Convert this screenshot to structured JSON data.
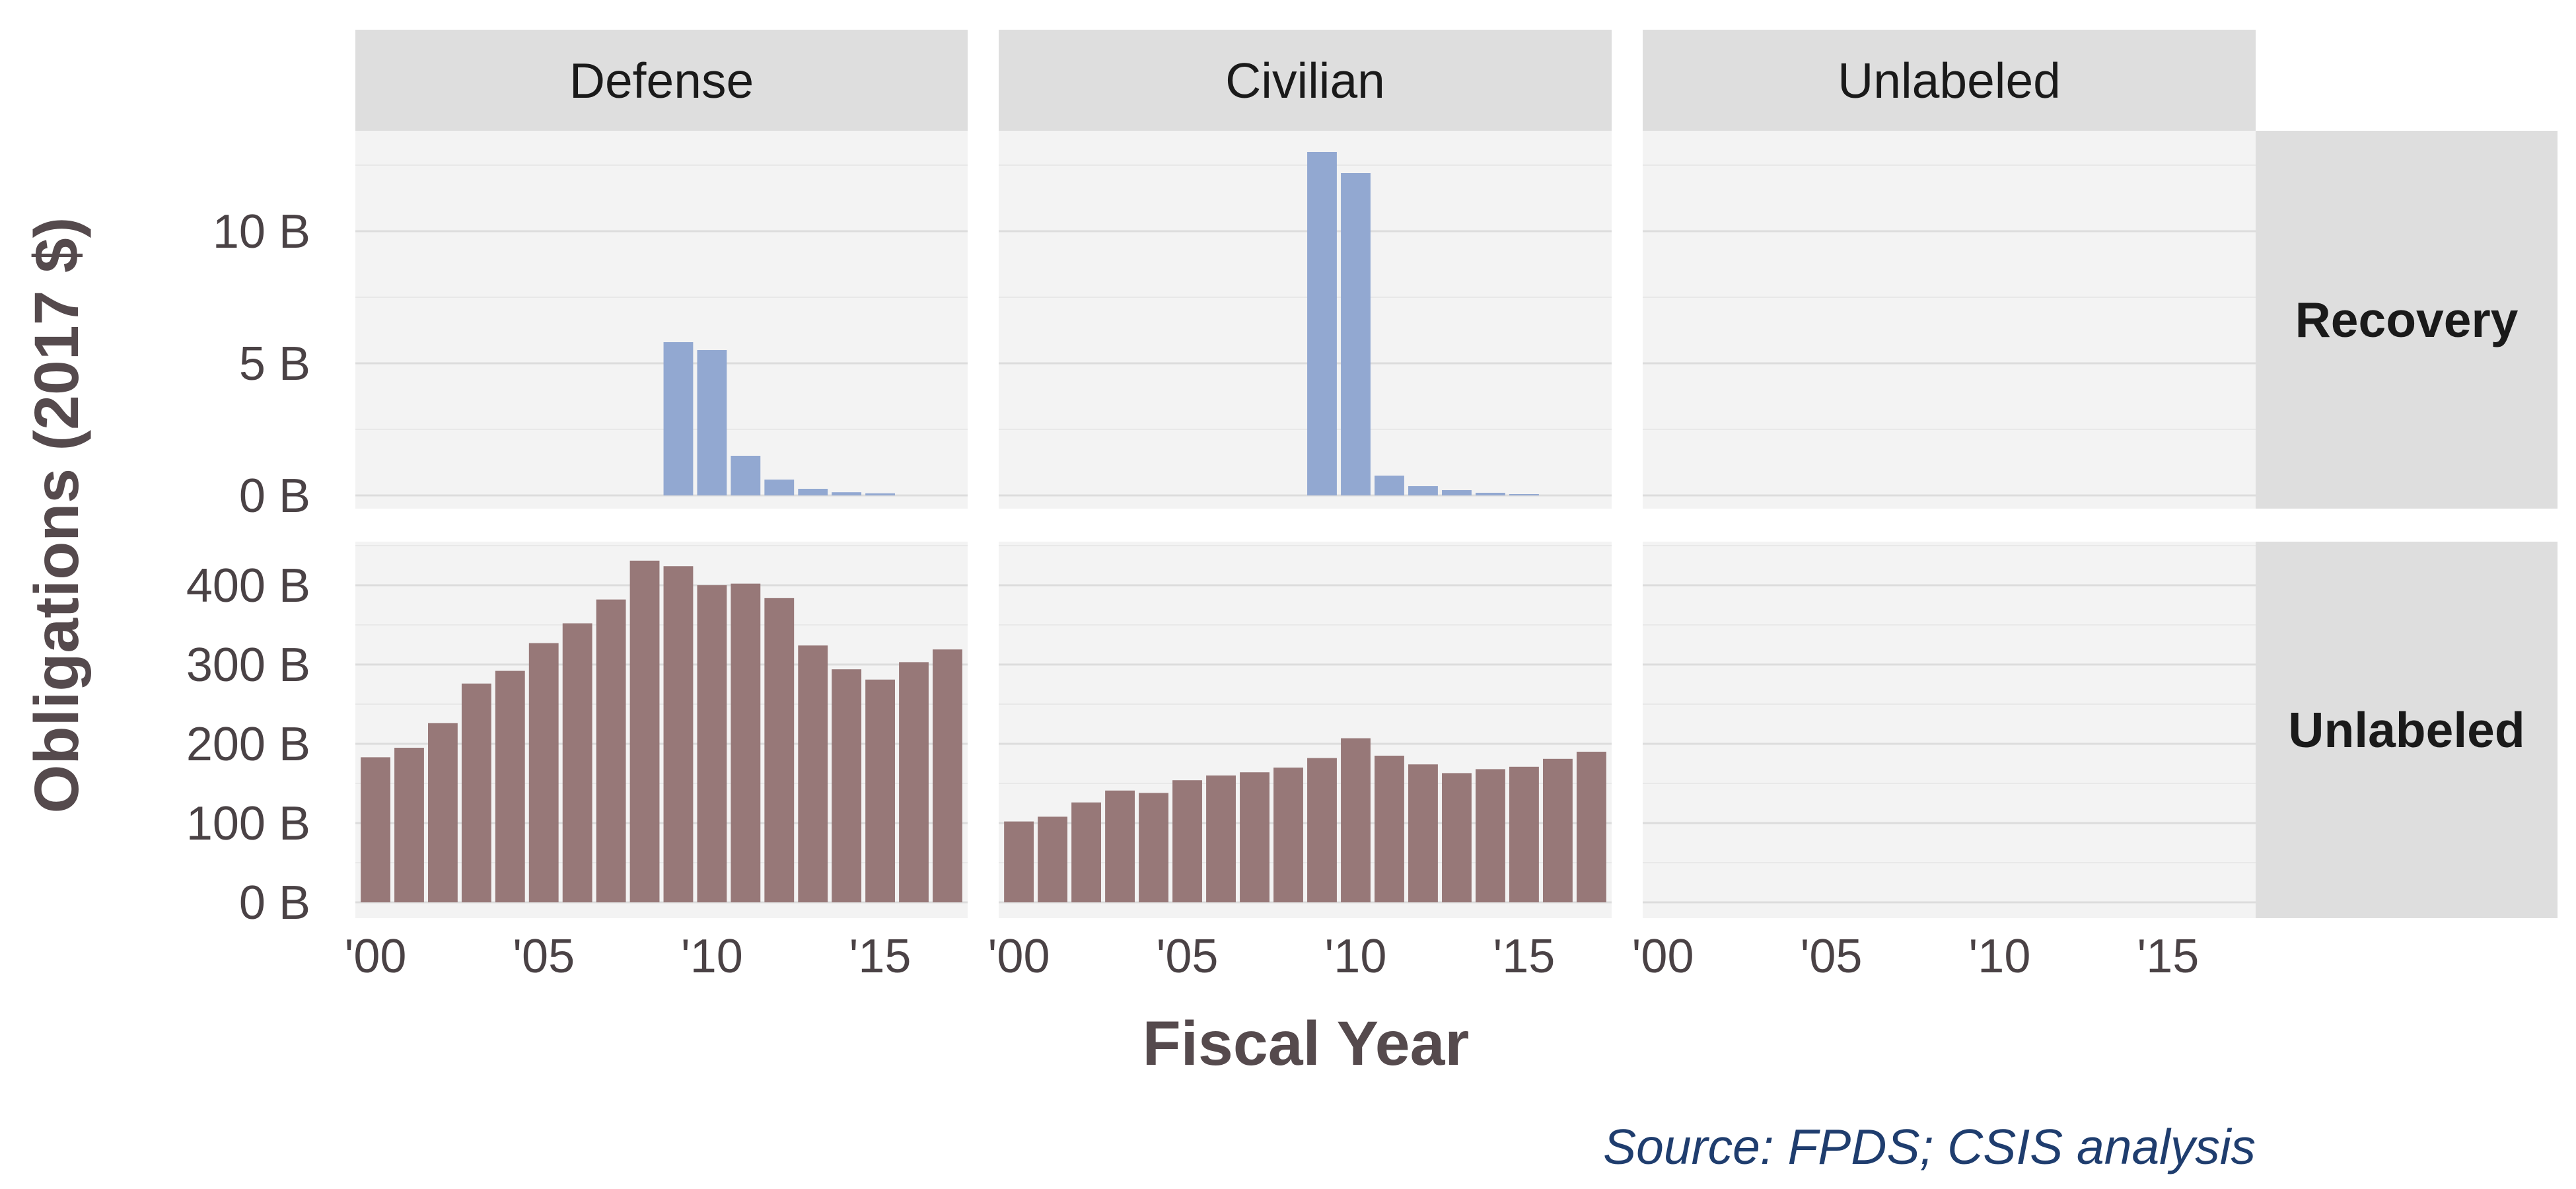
{
  "chart_data": {
    "type": "bar",
    "facet_columns": [
      "Defense",
      "Civilian",
      "Unlabeled"
    ],
    "facet_rows": [
      "Recovery",
      "Unlabeled"
    ],
    "xlabel": "Fiscal Year",
    "ylabel": "Obligations (2017 $)",
    "source": "Source: FPDS; CSIS analysis",
    "x_ticks": [
      "'00",
      "'05",
      "'10",
      "'15"
    ],
    "x": [
      2000,
      2001,
      2002,
      2003,
      2004,
      2005,
      2006,
      2007,
      2008,
      2009,
      2010,
      2011,
      2012,
      2013,
      2014,
      2015,
      2016,
      2017
    ],
    "rows": [
      {
        "name": "Recovery",
        "color": "#92a8d1",
        "ylim": [
          -0.5,
          13.8
        ],
        "y_ticks": [
          0,
          5,
          10
        ],
        "y_tick_labels": [
          "0 B",
          "5 B",
          "10 B"
        ],
        "panels": [
          {
            "column": "Defense",
            "values": [
              0,
              0,
              0,
              0,
              0,
              0,
              0,
              0,
              0,
              5.8,
              5.5,
              1.5,
              0.6,
              0.25,
              0.12,
              0.08,
              0,
              0
            ]
          },
          {
            "column": "Civilian",
            "values": [
              0,
              0,
              0,
              0,
              0,
              0,
              0,
              0,
              0,
              13.0,
              12.2,
              0.75,
              0.35,
              0.2,
              0.1,
              0.05,
              0,
              0
            ]
          },
          {
            "column": "Unlabeled",
            "values": []
          }
        ]
      },
      {
        "name": "Unlabeled",
        "color": "#977878",
        "ylim": [
          -20,
          455
        ],
        "y_ticks": [
          0,
          100,
          200,
          300,
          400
        ],
        "y_tick_labels": [
          "0 B",
          "100 B",
          "200 B",
          "300 B",
          "400 B"
        ],
        "panels": [
          {
            "column": "Defense",
            "values": [
              183,
              195,
              226,
              276,
              292,
              327,
              352,
              382,
              431,
              424,
              400,
              402,
              384,
              324,
              294,
              281,
              303,
              319
            ]
          },
          {
            "column": "Civilian",
            "values": [
              102,
              108,
              126,
              141,
              138,
              154,
              160,
              164,
              170,
              182,
              207,
              185,
              174,
              163,
              168,
              171,
              181,
              190
            ]
          },
          {
            "column": "Unlabeled",
            "values": []
          }
        ]
      }
    ]
  }
}
